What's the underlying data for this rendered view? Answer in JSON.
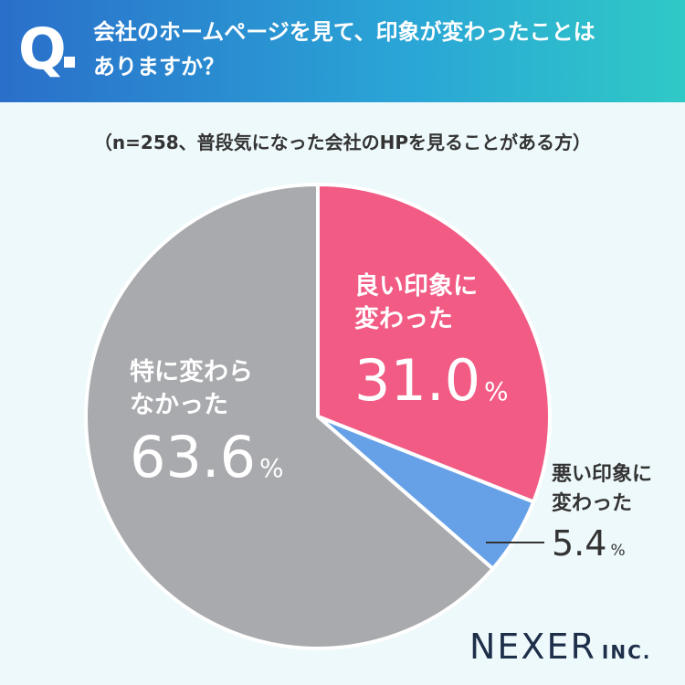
{
  "header": {
    "q_label": "Q",
    "question_line1": "会社のホームページを見て、印象が変わったことは",
    "question_line2": "ありますか？"
  },
  "note": "（n=258、普段気になった会社のHPを見ることがある方）",
  "chart_data": {
    "type": "pie",
    "title": "会社のホームページを見て、印象が変わったことはありますか？",
    "slices": [
      {
        "label_lines": [
          "良い印象に",
          "変わった"
        ],
        "value": 31.0,
        "value_text": "31.0",
        "color": "#f15b84"
      },
      {
        "label_lines": [
          "悪い印象に",
          "変わった"
        ],
        "value": 5.4,
        "value_text": "5.4",
        "color": "#66a1e8"
      },
      {
        "label_lines": [
          "特に変わら",
          "なかった"
        ],
        "value": 63.6,
        "value_text": "63.6",
        "color": "#a9aaae"
      }
    ],
    "unit": "%"
  },
  "brand": {
    "name": "NEXER",
    "suffix": "INC."
  },
  "colors": {
    "header_start": "#2a6fca",
    "header_end": "#2fc9c6",
    "background": "#eef9fb"
  }
}
